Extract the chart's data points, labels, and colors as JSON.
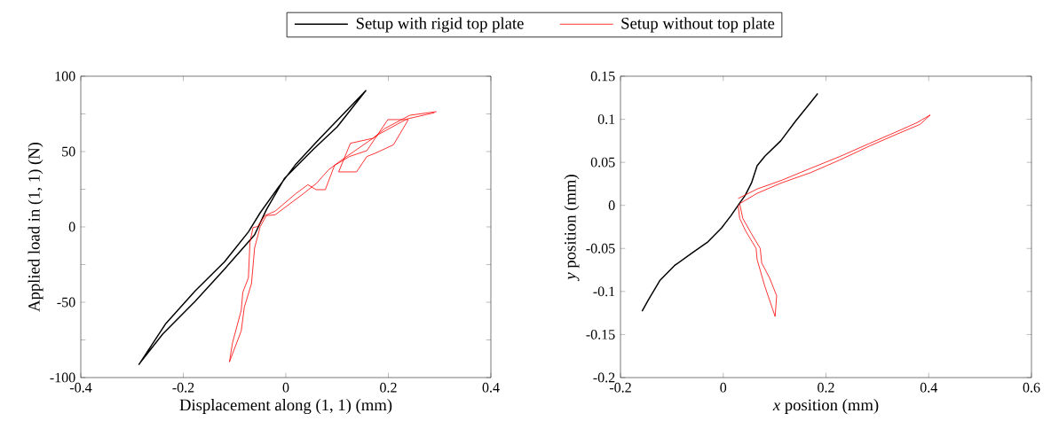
{
  "chart_data": [
    {
      "type": "line",
      "xlabel": "Displacement along (1, 1) (mm)",
      "ylabel": "Applied load in (1, 1) (N)",
      "xlim": [
        -0.4,
        0.4
      ],
      "ylim": [
        -100,
        100
      ],
      "xticks": [
        -0.4,
        -0.2,
        0,
        0.2,
        0.4
      ],
      "yticks": [
        -100,
        {
          "value": -75,
          "label": null
        },
        -50,
        {
          "value": -25,
          "label": null
        },
        0,
        {
          "value": 25,
          "label": null
        },
        50,
        {
          "value": 75,
          "label": null
        },
        100
      ],
      "legend": "top",
      "series": [
        {
          "name": "Setup with rigid top plate",
          "color": "#000000",
          "x": [
            -0.287,
            -0.234,
            -0.177,
            -0.119,
            -0.073,
            -0.05,
            -0.015,
            0.02,
            0.06,
            0.156,
            0.1,
            0.054,
            -0.003,
            -0.038,
            -0.061,
            -0.119,
            -0.177,
            -0.24,
            -0.284
          ],
          "values": [
            -91.6,
            -64.1,
            -42.5,
            -22.9,
            -3.3,
            9.4,
            26.1,
            41.8,
            56.5,
            90.4,
            66.3,
            51.6,
            32.0,
            11.4,
            -5.3,
            -27.8,
            -49.4,
            -71.0,
            -90.0
          ]
        },
        {
          "name": "Setup without top plate",
          "color": "#ff0000",
          "x": [
            0.294,
            0.242,
            0.193,
            0.17,
            0.126,
            0.103,
            0.138,
            0.158,
            0.175,
            0.21,
            0.239,
            0.199,
            0.158,
            0.124,
            0.095,
            0.077,
            0.059,
            0.043,
            0.02,
            -0.021,
            -0.041,
            -0.055,
            -0.064,
            -0.07,
            -0.073,
            -0.084,
            -0.087,
            -0.104,
            -0.11,
            -0.087,
            -0.081,
            -0.067,
            -0.061,
            -0.05,
            -0.038,
            -0.021,
            0.031,
            0.06,
            0.083,
            0.106,
            0.135,
            0.181,
            0.236,
            0.29
          ],
          "values": [
            76.5,
            74.1,
            65.3,
            58.8,
            55.5,
            36.5,
            36.5,
            46.7,
            49.0,
            54.5,
            71.2,
            71.2,
            50.6,
            46.7,
            40.8,
            24.7,
            24.7,
            28.0,
            22.2,
            10.4,
            7.5,
            0.2,
            -0.4,
            -10.2,
            -33.7,
            -43.5,
            -55.3,
            -76.9,
            -89.6,
            -69.0,
            -53.3,
            -37.6,
            -14.1,
            0.2,
            7.5,
            8.0,
            21.2,
            29.0,
            37.8,
            43.7,
            50.6,
            61.4,
            71.6,
            75.8
          ]
        }
      ]
    },
    {
      "type": "line",
      "xlabel": "*x* position (mm)",
      "ylabel": "*y* position (mm)",
      "xlim": [
        -0.2,
        0.6
      ],
      "ylim": [
        -0.2,
        0.15
      ],
      "xticks": [
        -0.2,
        0,
        0.2,
        0.4,
        0.6
      ],
      "yticks": [
        -0.2,
        -0.15,
        -0.1,
        -0.05,
        0,
        0.05,
        0.1,
        0.15
      ],
      "series": [
        {
          "color": "#000000",
          "x": [
            -0.158,
            -0.146,
            -0.123,
            -0.095,
            -0.06,
            -0.031,
            -0.003,
            0.015,
            0.029,
            0.043,
            0.055,
            0.066,
            0.081,
            0.112,
            0.141,
            0.164,
            0.184
          ],
          "values": [
            -0.123,
            -0.11,
            -0.087,
            -0.07,
            -0.055,
            -0.043,
            -0.026,
            -0.012,
            0,
            0.012,
            0.026,
            0.046,
            0.057,
            0.075,
            0.098,
            0.115,
            0.13
          ]
        },
        {
          "color": "#ff0000",
          "x": [
            0.029,
            0.066,
            0.113,
            0.17,
            0.228,
            0.285,
            0.343,
            0.377,
            0.403,
            0.383,
            0.343,
            0.285,
            0.228,
            0.17,
            0.113,
            0.066,
            0.032,
            0.038,
            0.055,
            0.072,
            0.075,
            0.09,
            0.104,
            0.101,
            0.081,
            0.066,
            0.064,
            0.043,
            0.032,
            0.029
          ],
          "values": [
            0.008,
            0.019,
            0.029,
            0.043,
            0.057,
            0.072,
            0.087,
            0.096,
            0.105,
            0.094,
            0.084,
            0.069,
            0.053,
            0.038,
            0.026,
            0.014,
            0.002,
            -0.015,
            -0.033,
            -0.05,
            -0.067,
            -0.084,
            -0.105,
            -0.129,
            -0.094,
            -0.063,
            -0.05,
            -0.029,
            -0.015,
            0
          ]
        }
      ]
    }
  ]
}
